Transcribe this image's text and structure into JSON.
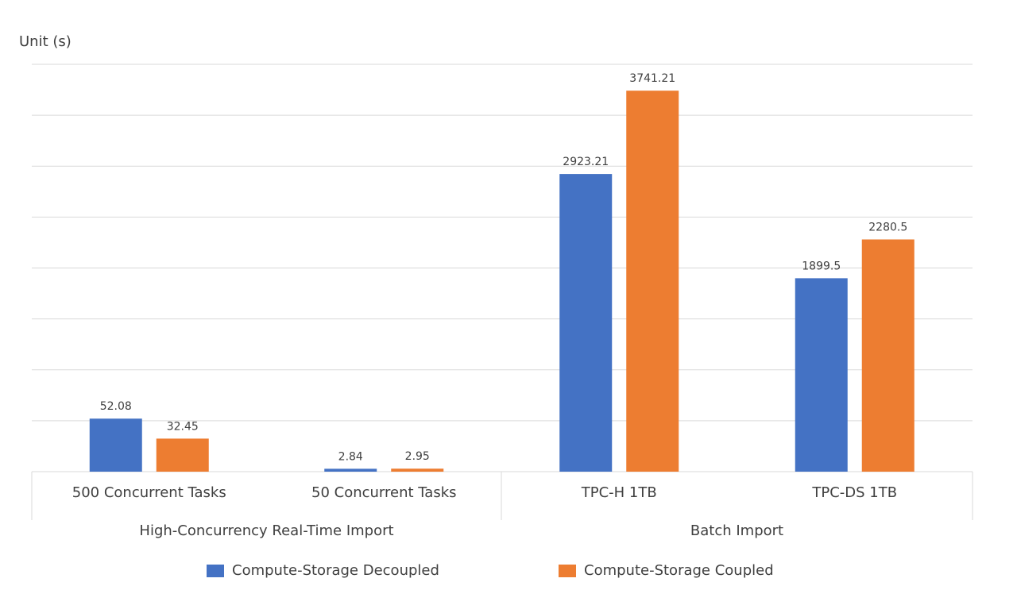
{
  "unit_label": "Unit (s)",
  "chart_data": [
    {
      "type": "bar",
      "group": "High-Concurrency Real-Time Import",
      "categories": [
        "500 Concurrent Tasks",
        "50 Concurrent Tasks"
      ],
      "series": [
        {
          "name": "Compute-Storage Decoupled",
          "color": "#4472c4",
          "values": [
            52.08,
            2.84
          ]
        },
        {
          "name": "Compute-Storage Coupled",
          "color": "#ed7d31",
          "values": [
            32.45,
            2.95
          ]
        }
      ],
      "ylim": [
        0,
        400
      ],
      "yticks": [
        0,
        50,
        100,
        150,
        200,
        250,
        300,
        350,
        400
      ],
      "grid": true
    },
    {
      "type": "bar",
      "group": "Batch Import",
      "categories": [
        "TPC-H 1TB",
        "TPC-DS 1TB"
      ],
      "series": [
        {
          "name": "Compute-Storage Decoupled",
          "color": "#4472c4",
          "values": [
            2923.21,
            1899.5
          ]
        },
        {
          "name": "Compute-Storage Coupled",
          "color": "#ed7d31",
          "values": [
            3741.21,
            2280.5
          ]
        }
      ],
      "ylim": [
        0,
        4000
      ],
      "yticks": [
        0,
        500,
        1000,
        1500,
        2000,
        2500,
        3000,
        3500,
        4000
      ],
      "grid": true
    }
  ]
}
